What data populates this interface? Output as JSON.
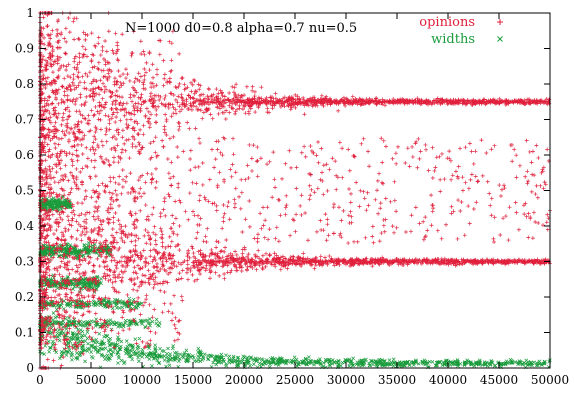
{
  "chart_data": {
    "type": "scatter",
    "title": "",
    "xlabel": "",
    "ylabel": "",
    "annotation": "N=1000  d0=0.8 alpha=0.7 nu=0.5",
    "xlim": [
      0,
      50000
    ],
    "ylim": [
      0,
      1
    ],
    "x_ticks": [
      "0",
      "5000",
      "10000",
      "15000",
      "20000",
      "25000",
      "30000",
      "35000",
      "40000",
      "45000",
      "50000"
    ],
    "y_ticks": [
      "0",
      "0.1",
      "0.2",
      "0.3",
      "0.4",
      "0.5",
      "0.6",
      "0.7",
      "0.8",
      "0.9",
      "1"
    ],
    "grid": false,
    "legend_position": "top-right",
    "series": [
      {
        "name": "opinions",
        "marker": "+",
        "color": "#e0203c",
        "clusters": [
          {
            "y": 0.75,
            "converged_by_x": 20000
          },
          {
            "y": 0.3,
            "converged_by_x": 20000
          },
          {
            "y_range": [
              0.35,
              0.65
            ],
            "x_range": [
              10000,
              50000
            ],
            "note": "sparse"
          }
        ]
      },
      {
        "name": "widths",
        "marker": "x",
        "color": "#1a9c3c",
        "clusters": [
          {
            "y": 0.46,
            "x_range": [
              0,
              3000
            ]
          },
          {
            "y": 0.33,
            "x_range": [
              0,
              7000
            ]
          },
          {
            "y": 0.24,
            "x_range": [
              0,
              6000
            ]
          },
          {
            "y": 0.18,
            "x_range": [
              0,
              10000
            ]
          },
          {
            "y": 0.12,
            "x_range": [
              0,
              12000
            ]
          },
          {
            "y_decay_from": 0.1,
            "to": 0.01,
            "x_range": [
              0,
              50000
            ]
          }
        ]
      }
    ]
  }
}
